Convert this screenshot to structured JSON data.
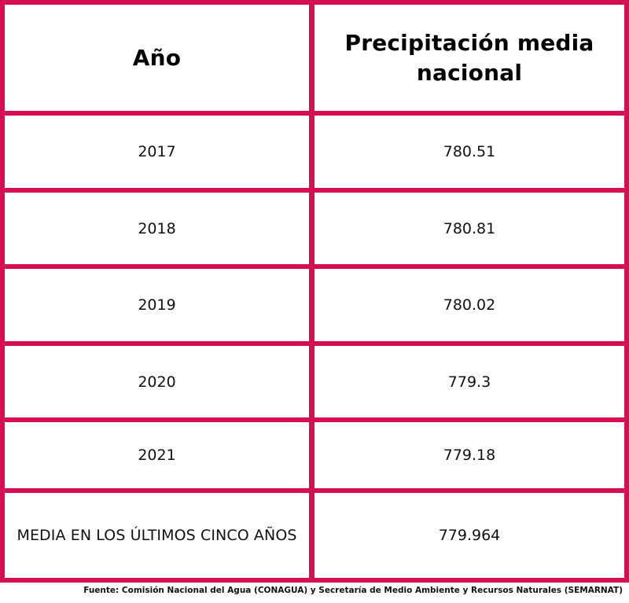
{
  "table": {
    "headers": [
      "Año",
      "Precipitación media nacional"
    ],
    "rows": [
      {
        "year": "2017",
        "value": "780.51"
      },
      {
        "year": "2018",
        "value": "780.81"
      },
      {
        "year": "2019",
        "value": "780.02"
      },
      {
        "year": "2020",
        "value": "779.3"
      },
      {
        "year": "2021",
        "value": "779.18"
      }
    ],
    "summary": {
      "label": "MEDIA EN LOS ÚLTIMOS CINCO AÑOS",
      "value": "779.964"
    }
  },
  "source": "Fuente: Comisión Nacional del Agua (CONAGUA) y Secretaría de Medio Ambiente y Recursos Naturales (SEMARNAT)",
  "colors": {
    "border": "#d60f52",
    "background": "#ffffff",
    "text": "#111111"
  }
}
